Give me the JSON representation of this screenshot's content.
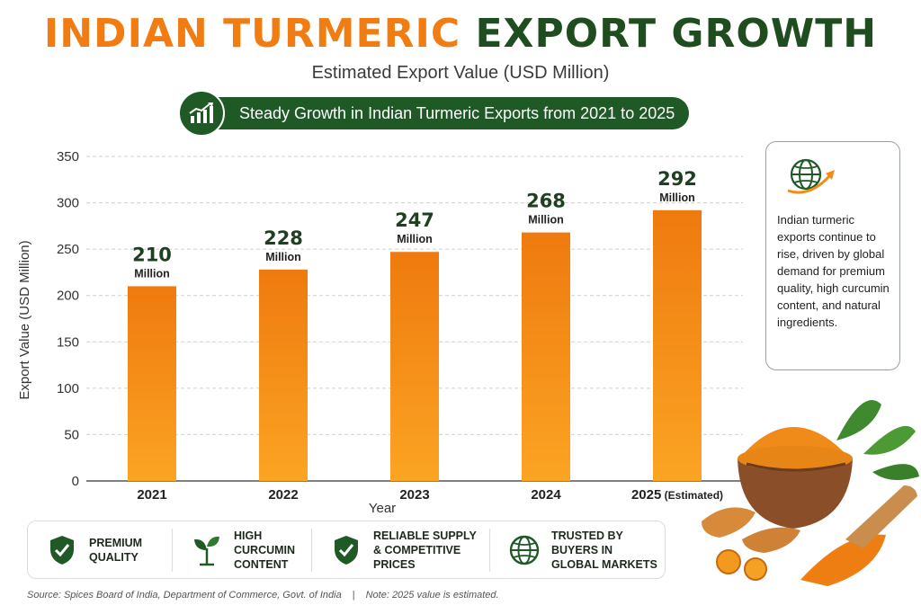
{
  "header": {
    "title_part1": "INDIAN TURMERIC",
    "title_part2": "EXPORT GROWTH",
    "subtitle": "Estimated Export Value (USD Million)",
    "banner_text": "Steady Growth in Indian Turmeric Exports from 2021 to 2025",
    "banner_icon": "growth-chart-icon"
  },
  "chart_data": {
    "type": "bar",
    "categories": [
      "2021",
      "2022",
      "2023",
      "2024",
      "2025"
    ],
    "category_notes": [
      "",
      "",
      "",
      "",
      "(Estimated)"
    ],
    "values": [
      210,
      228,
      247,
      268,
      292
    ],
    "value_labels": [
      "210",
      "228",
      "247",
      "268",
      "292"
    ],
    "value_unit": "Million",
    "xlabel": "Year",
    "ylabel": "Export Value (USD Million)",
    "ylim": [
      0,
      350
    ],
    "yticks": [
      0,
      50,
      100,
      150,
      200,
      250,
      300,
      350
    ],
    "grid": true,
    "bar_color_top": "#ef7a0f",
    "bar_color_bottom": "#fba423"
  },
  "side_card": {
    "icon": "globe-growth-icon",
    "text": "Indian turmeric exports continue to rise, driven by global demand for premium quality, high curcumin content, and natural ingredients."
  },
  "features": [
    {
      "icon": "shield-check-icon",
      "label": "PREMIUM\nQUALITY"
    },
    {
      "icon": "leaf-plant-icon",
      "label": "HIGH\nCURCUMIN\nCONTENT"
    },
    {
      "icon": "shield-check-icon",
      "label": "RELIABLE SUPPLY\n& COMPETITIVE\nPRICES"
    },
    {
      "icon": "globe-icon",
      "label": "TRUSTED BY\nBUYERS IN\nGLOBAL MARKETS"
    }
  ],
  "footer": {
    "source": "Source: Spices Board of India, Department of Commerce, Govt. of India",
    "separator": "|",
    "note": "Note: 2025 value is estimated."
  },
  "colors": {
    "accent_orange": "#f07c12",
    "dark_green": "#1f5a26"
  }
}
